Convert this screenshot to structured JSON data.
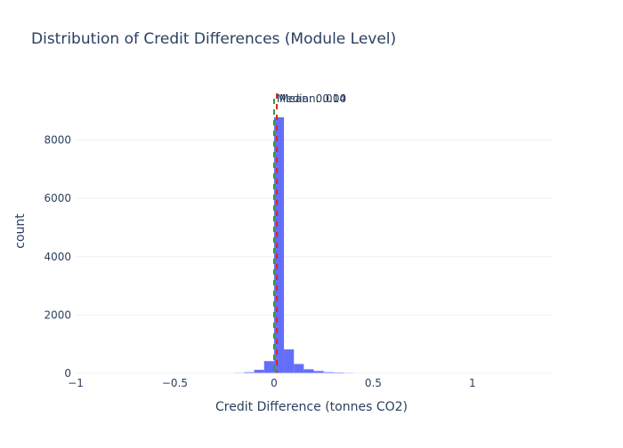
{
  "chart_data": {
    "type": "bar",
    "title": "Distribution of Credit Differences (Module Level)",
    "xlabel": "Credit Difference (tonnes CO2)",
    "ylabel": "count",
    "xlim": [
      -1,
      1.4
    ],
    "ylim": [
      0,
      9600
    ],
    "x_ticks": [
      -1,
      -0.5,
      0,
      0.5,
      1
    ],
    "x_tick_labels": [
      "−1",
      "−0.5",
      "0",
      "0.5",
      "1"
    ],
    "y_ticks": [
      0,
      2000,
      4000,
      6000,
      8000
    ],
    "y_tick_labels": [
      "0",
      "2000",
      "4000",
      "6000",
      "8000"
    ],
    "grid": true,
    "bar_color": "#636efa",
    "bins": {
      "x0": [
        -0.25,
        -0.2,
        -0.15,
        -0.1,
        -0.05,
        0.0,
        0.05,
        0.1,
        0.15,
        0.2,
        0.25,
        0.3,
        0.35,
        0.4,
        0.45,
        0.5,
        0.55
      ],
      "x1": [
        -0.2,
        -0.15,
        -0.1,
        -0.05,
        0.0,
        0.05,
        0.1,
        0.15,
        0.2,
        0.25,
        0.3,
        0.35,
        0.4,
        0.45,
        0.5,
        0.55,
        0.6
      ],
      "counts": [
        10,
        20,
        40,
        120,
        420,
        8780,
        820,
        320,
        140,
        80,
        40,
        30,
        20,
        15,
        10,
        8,
        5
      ]
    },
    "lines": [
      {
        "label": "Mean: 0.014",
        "x": 0.014,
        "color": "#d62728"
      },
      {
        "label": "Median: 0.00",
        "x": 0.0,
        "color": "#2ca02c"
      }
    ]
  }
}
